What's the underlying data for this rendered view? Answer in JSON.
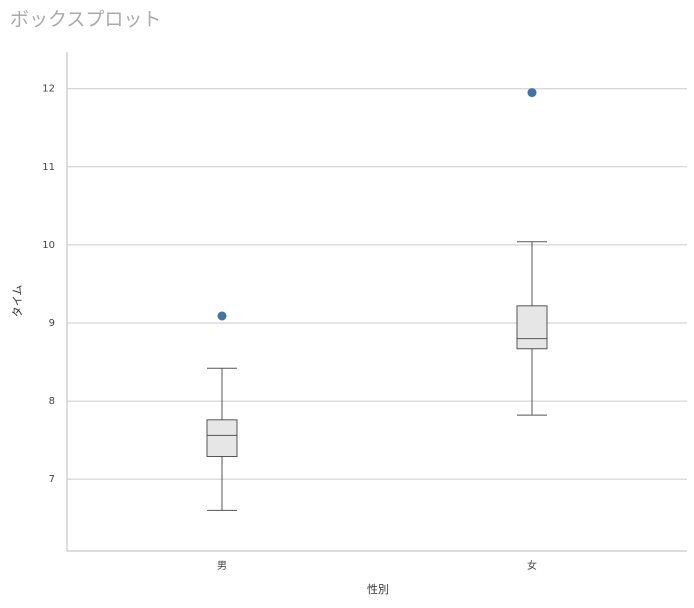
{
  "chart_data": {
    "type": "box",
    "title": "ボックスプロット",
    "x_label": "性別",
    "y_label": "タイム",
    "categories": [
      "男",
      "女"
    ],
    "boxes": [
      {
        "min": 6.6,
        "q1": 7.29,
        "median": 7.56,
        "q3": 7.76,
        "max": 8.42,
        "outliers": [
          9.09
        ]
      },
      {
        "min": 7.82,
        "q1": 8.67,
        "median": 8.8,
        "q3": 9.22,
        "max": 10.04,
        "outliers": [
          11.95
        ]
      }
    ],
    "box_color": "#e6e6e6",
    "line_color": "#555555",
    "outlier_color": "#4572a7",
    "ylim": [
      6.08,
      12.47
    ],
    "yticks": [
      7,
      8,
      9,
      10,
      11,
      12
    ],
    "grid": true
  }
}
